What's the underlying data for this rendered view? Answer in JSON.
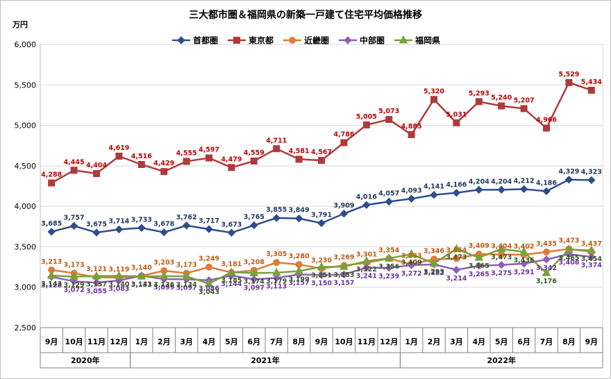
{
  "chart_data": {
    "type": "line",
    "title": "三大都市圏＆福岡県の新築一戸建て住宅平均価格推移",
    "y_unit": "万円",
    "ylim": [
      2500,
      6000
    ],
    "yticks": [
      "2,500",
      "3,000",
      "3,500",
      "4,000",
      "4,500",
      "5,000",
      "5,500",
      "6,000"
    ],
    "ytick_values": [
      2500,
      3000,
      3500,
      4000,
      4500,
      5000,
      5500,
      6000
    ],
    "categories": [
      "9月",
      "10月",
      "11月",
      "12月",
      "1月",
      "2月",
      "3月",
      "4月",
      "5月",
      "6月",
      "7月",
      "8月",
      "9月",
      "10月",
      "11月",
      "12月",
      "1月",
      "2月",
      "3月",
      "4月",
      "5月",
      "6月",
      "7月",
      "8月",
      "9月"
    ],
    "years": [
      {
        "label": "2020年",
        "start": 0,
        "end": 3
      },
      {
        "label": "2021年",
        "start": 4,
        "end": 15
      },
      {
        "label": "2022年",
        "start": 16,
        "end": 24
      }
    ],
    "grid": true,
    "legend_position": "top",
    "series": [
      {
        "name": "首都圏",
        "color": "#2e4d8f",
        "label_color": "#1f3864",
        "marker": "diamond",
        "label_pos": "above",
        "values": [
          3685,
          3757,
          3675,
          3714,
          3733,
          3678,
          3762,
          3717,
          3673,
          3765,
          3855,
          3849,
          3791,
          3909,
          4016,
          4057,
          4093,
          4141,
          4166,
          4204,
          4204,
          4212,
          4186,
          4329,
          4323
        ],
        "labels": [
          "3,685",
          "3,757",
          "3,675",
          "3,714",
          "3,733",
          "3,678",
          "3,762",
          "3,717",
          "3,673",
          "3,765",
          "3,855",
          "3,849",
          "3,791",
          "3,909",
          "4,016",
          "4,057",
          "4,093",
          "4,141",
          "4,166",
          "4,204",
          "4,204",
          "4,212",
          "4,186",
          "4,329",
          "4,323"
        ]
      },
      {
        "name": "東京都",
        "color": "#b03a3a",
        "label_color": "#c00000",
        "marker": "square",
        "label_pos": "above",
        "values": [
          4288,
          4445,
          4404,
          4619,
          4516,
          4429,
          4555,
          4597,
          4479,
          4559,
          4711,
          4581,
          4567,
          4786,
          5005,
          5073,
          4885,
          5320,
          5031,
          5293,
          5240,
          5207,
          4966,
          5529,
          5434
        ],
        "labels": [
          "4,288",
          "4,445",
          "4,404",
          "4,619",
          "4,516",
          "4,429",
          "4,555",
          "4,597",
          "4,479",
          "4,559",
          "4,711",
          "4,581",
          "4,567",
          "4,786",
          "5,005",
          "5,073",
          "4,885",
          "5,320",
          "5,031",
          "5,293",
          "5,240",
          "5,207",
          "4,966",
          "5,529",
          "5,434"
        ]
      },
      {
        "name": "近畿圏",
        "color": "#e07b39",
        "label_color": "#c55a11",
        "marker": "circle",
        "label_pos": "above",
        "values": [
          3213,
          3173,
          3121,
          3119,
          3140,
          3203,
          3173,
          3249,
          3181,
          3208,
          3305,
          3280,
          3230,
          3269,
          3301,
          3354,
          3283,
          3346,
          3354,
          3409,
          3404,
          3402,
          3435,
          3473,
          3437
        ],
        "labels": [
          "3,213",
          "3,173",
          "3,121",
          "3,119",
          "3,140",
          "3,203",
          "3,173",
          "3,249",
          "3,181",
          "3,208",
          "3,305",
          "3,280",
          "3,230",
          "3,269",
          "3,301",
          "3,354",
          "3,283",
          "3,346",
          "3,354",
          "3,409",
          "3,404",
          "3,402",
          "3,435",
          "3,473",
          "3,437"
        ]
      },
      {
        "name": "中部圏",
        "color": "#8e5fb5",
        "label_color": "#7030a0",
        "marker": "diamond",
        "label_pos": "below",
        "values": [
          3128,
          3072,
          3055,
          3083,
          3141,
          3099,
          3097,
          3086,
          3144,
          3097,
          3113,
          3157,
          3150,
          3157,
          3241,
          3239,
          3272,
          3282,
          3214,
          3265,
          3275,
          3291,
          3342,
          3408,
          3374
        ],
        "labels": [
          "3,128",
          "3,072",
          "3,055",
          "3,083",
          "3,141",
          "3,099",
          "3,097",
          "3,086",
          "3,144",
          "3,097",
          "3,113",
          "3,157",
          "3,150",
          "3,157",
          "3,241",
          "3,239",
          "3,272",
          "3,282",
          "3,214",
          "3,265",
          "3,275",
          "3,291",
          "3,342",
          "3,408",
          "3,374"
        ]
      },
      {
        "name": "福岡県",
        "color": "#7aa03a",
        "label_color": "#375623",
        "marker": "triangle",
        "label_pos": "below",
        "values": [
          3143,
          3129,
          3137,
          3140,
          3133,
          3136,
          3134,
          3043,
          3185,
          3174,
          3179,
          3199,
          3251,
          3253,
          3322,
          3356,
          3409,
          3293,
          3473,
          3365,
          3473,
          3436,
          3176,
          3465,
          3454
        ],
        "labels": [
          "3,143",
          "3,129",
          "3,137",
          "3,140",
          "3,133",
          "3,136",
          "3,134",
          "3,043",
          "3,185",
          "3,174",
          "3,179",
          "3,199",
          "3,251",
          "3,253",
          "3,322",
          "3,356",
          "3,409",
          "3,293",
          "3,473",
          "3,365",
          "3,473",
          "3,436",
          "3,176",
          "3,465",
          "3,454"
        ]
      }
    ]
  }
}
